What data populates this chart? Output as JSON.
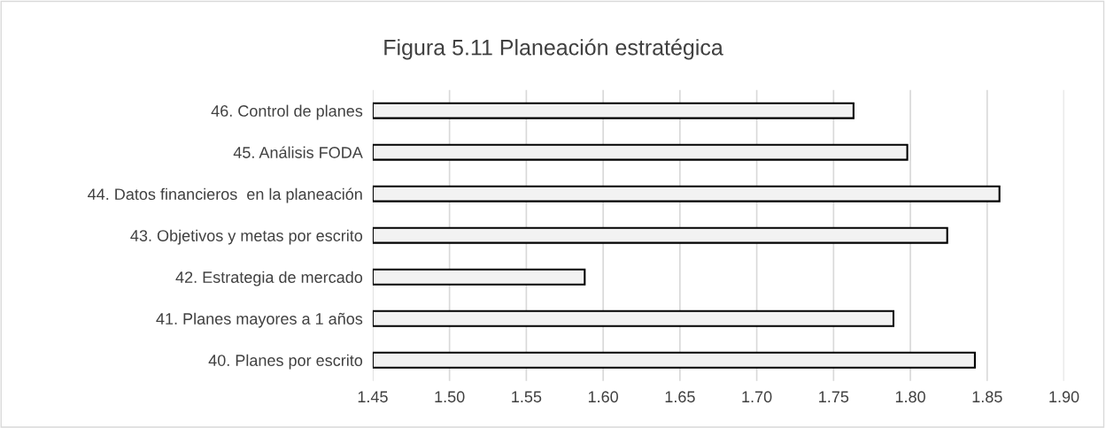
{
  "chart_data": {
    "type": "bar",
    "orientation": "horizontal",
    "title": "Figura 5.11 Planeación estratégica",
    "categories": [
      "46. Control de planes",
      "45. Análisis FODA",
      "44. Datos financieros  en la planeación",
      "43. Objetivos y metas por escrito",
      "42. Estrategia de mercado",
      "41. Planes mayores a 1 años",
      "40. Planes por escrito"
    ],
    "values": [
      1.763,
      1.798,
      1.858,
      1.824,
      1.588,
      1.789,
      1.842
    ],
    "color": "#f2f2f2",
    "xlim": [
      1.45,
      1.9
    ],
    "xticks": [
      {
        "value": 1.45,
        "label": "1.45"
      },
      {
        "value": 1.5,
        "label": "1.50"
      },
      {
        "value": 1.55,
        "label": "1.55"
      },
      {
        "value": 1.6,
        "label": "1.60"
      },
      {
        "value": 1.65,
        "label": "1.65"
      },
      {
        "value": 1.7,
        "label": "1.70"
      },
      {
        "value": 1.75,
        "label": "1.75"
      },
      {
        "value": 1.8,
        "label": "1.80"
      },
      {
        "value": 1.85,
        "label": "1.85"
      },
      {
        "value": 1.9,
        "label": "1.90"
      }
    ],
    "grid": "x"
  }
}
